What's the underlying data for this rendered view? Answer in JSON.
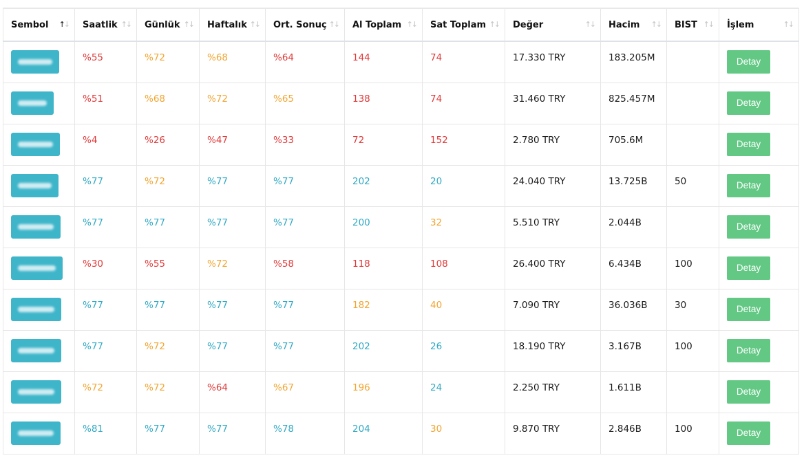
{
  "columns": [
    {
      "label": "Sembol",
      "sort": "asc"
    },
    {
      "label": "Saatlik",
      "sort": "none"
    },
    {
      "label": "Günlük",
      "sort": "none"
    },
    {
      "label": "Haftalık",
      "sort": "none"
    },
    {
      "label": "Ort. Sonuç",
      "sort": "none"
    },
    {
      "label": "Al Toplam",
      "sort": "none"
    },
    {
      "label": "Sat Toplam",
      "sort": "none"
    },
    {
      "label": "Değer",
      "sort": "none"
    },
    {
      "label": "Hacim",
      "sort": "none"
    },
    {
      "label": "BIST",
      "sort": "none"
    },
    {
      "label": "İşlem",
      "sort": "none"
    }
  ],
  "colors": {
    "red": "#e03a3a",
    "orange": "#f2a531",
    "blue": "#31a9c4",
    "badge": "#3fb5ca",
    "button": "#62c884"
  },
  "action_label": "Detay",
  "rows": [
    {
      "badge_w": 70,
      "saatlik": "%55",
      "saatlik_c": "red",
      "gunluk": "%72",
      "gunluk_c": "orange",
      "haftalik": "%68",
      "haftalik_c": "orange",
      "ort": "%64",
      "ort_c": "red",
      "al": "144",
      "al_c": "red",
      "sat": "74",
      "sat_c": "red",
      "deger": "17.330 TRY",
      "hacim": "183.205M",
      "bist": ""
    },
    {
      "badge_w": 62,
      "saatlik": "%51",
      "saatlik_c": "red",
      "gunluk": "%68",
      "gunluk_c": "orange",
      "haftalik": "%72",
      "haftalik_c": "orange",
      "ort": "%65",
      "ort_c": "orange",
      "al": "138",
      "al_c": "red",
      "sat": "74",
      "sat_c": "red",
      "deger": "31.460 TRY",
      "hacim": "825.457M",
      "bist": ""
    },
    {
      "badge_w": 71,
      "saatlik": "%4",
      "saatlik_c": "red",
      "gunluk": "%26",
      "gunluk_c": "red",
      "haftalik": "%47",
      "haftalik_c": "red",
      "ort": "%33",
      "ort_c": "red",
      "al": "72",
      "al_c": "red",
      "sat": "152",
      "sat_c": "red",
      "deger": "2.780 TRY",
      "hacim": "705.6M",
      "bist": ""
    },
    {
      "badge_w": 69,
      "saatlik": "%77",
      "saatlik_c": "blue",
      "gunluk": "%72",
      "gunluk_c": "orange",
      "haftalik": "%77",
      "haftalik_c": "blue",
      "ort": "%77",
      "ort_c": "blue",
      "al": "202",
      "al_c": "blue",
      "sat": "20",
      "sat_c": "blue",
      "deger": "24.040 TRY",
      "hacim": "13.725B",
      "bist": "50"
    },
    {
      "badge_w": 72,
      "saatlik": "%77",
      "saatlik_c": "blue",
      "gunluk": "%77",
      "gunluk_c": "blue",
      "haftalik": "%77",
      "haftalik_c": "blue",
      "ort": "%77",
      "ort_c": "blue",
      "al": "200",
      "al_c": "blue",
      "sat": "32",
      "sat_c": "orange",
      "deger": "5.510 TRY",
      "hacim": "2.044B",
      "bist": ""
    },
    {
      "badge_w": 75,
      "saatlik": "%30",
      "saatlik_c": "red",
      "gunluk": "%55",
      "gunluk_c": "red",
      "haftalik": "%72",
      "haftalik_c": "orange",
      "ort": "%58",
      "ort_c": "red",
      "al": "118",
      "al_c": "red",
      "sat": "108",
      "sat_c": "red",
      "deger": "26.400 TRY",
      "hacim": "6.434B",
      "bist": "100"
    },
    {
      "badge_w": 73,
      "saatlik": "%77",
      "saatlik_c": "blue",
      "gunluk": "%77",
      "gunluk_c": "blue",
      "haftalik": "%77",
      "haftalik_c": "blue",
      "ort": "%77",
      "ort_c": "blue",
      "al": "182",
      "al_c": "orange",
      "sat": "40",
      "sat_c": "orange",
      "deger": "7.090 TRY",
      "hacim": "36.036B",
      "bist": "30"
    },
    {
      "badge_w": 73,
      "saatlik": "%77",
      "saatlik_c": "blue",
      "gunluk": "%72",
      "gunluk_c": "orange",
      "haftalik": "%77",
      "haftalik_c": "blue",
      "ort": "%77",
      "ort_c": "blue",
      "al": "202",
      "al_c": "blue",
      "sat": "26",
      "sat_c": "blue",
      "deger": "18.190 TRY",
      "hacim": "3.167B",
      "bist": "100"
    },
    {
      "badge_w": 73,
      "saatlik": "%72",
      "saatlik_c": "orange",
      "gunluk": "%72",
      "gunluk_c": "orange",
      "haftalik": "%64",
      "haftalik_c": "red",
      "ort": "%67",
      "ort_c": "orange",
      "al": "196",
      "al_c": "orange",
      "sat": "24",
      "sat_c": "blue",
      "deger": "2.250 TRY",
      "hacim": "1.611B",
      "bist": ""
    },
    {
      "badge_w": 72,
      "saatlik": "%81",
      "saatlik_c": "blue",
      "gunluk": "%77",
      "gunluk_c": "blue",
      "haftalik": "%77",
      "haftalik_c": "blue",
      "ort": "%78",
      "ort_c": "blue",
      "al": "204",
      "al_c": "blue",
      "sat": "30",
      "sat_c": "orange",
      "deger": "9.870 TRY",
      "hacim": "2.846B",
      "bist": "100"
    }
  ]
}
